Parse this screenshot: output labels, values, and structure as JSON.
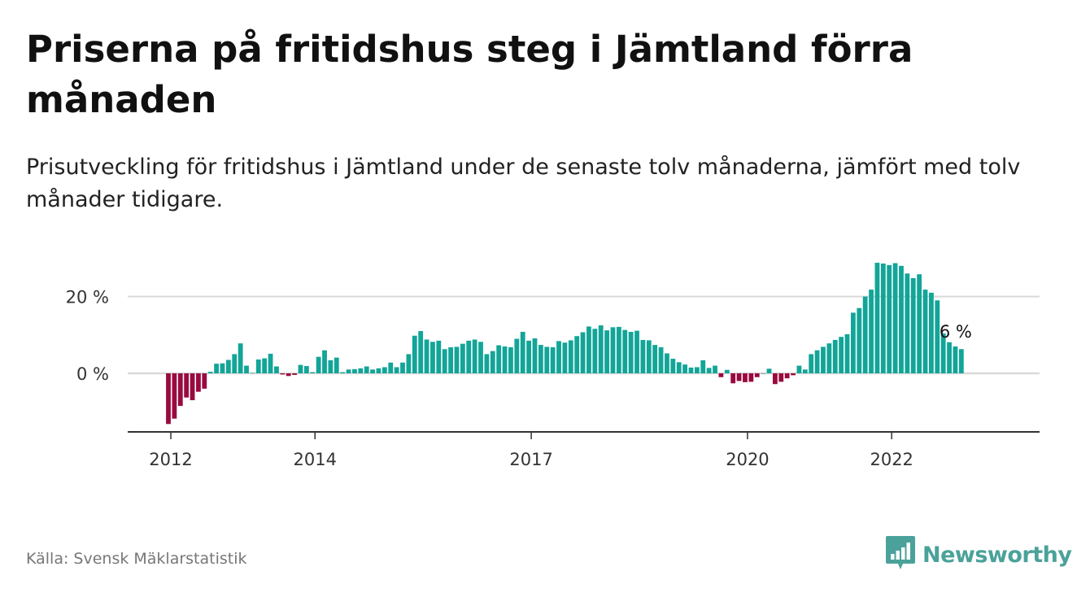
{
  "header": {
    "title": "Priserna på fritidshus steg i Jämtland förra månaden",
    "subtitle": "Prisutveckling för fritidshus i Jämtland under de senaste tolv månaderna, jämfört med tolv månader tidigare."
  },
  "footer": {
    "source": "Källa: Svensk Mäklarstatistik",
    "brand": "Newsworthy",
    "brand_icon": "bar-chart-speech-bubble-icon",
    "brand_color": "#4aa29a"
  },
  "colors": {
    "positive": "#12a598",
    "negative": "#990a3f",
    "grid": "#d9d9d9",
    "axis": "#333333"
  },
  "chart_data": {
    "type": "bar",
    "x_start": "2012-01",
    "frequency": "monthly",
    "ylim": [
      -15,
      29
    ],
    "yticks": [
      0,
      20
    ],
    "ytick_labels": [
      "0 %",
      "20 %"
    ],
    "xticks": [
      "2012-01",
      "2014-01",
      "2017-01",
      "2020-01",
      "2022-01"
    ],
    "xtick_labels": [
      "2012",
      "2014",
      "2017",
      "2020",
      "2022"
    ],
    "grid": true,
    "end_label": "6 %",
    "values": [
      -13.2,
      -11.8,
      -8.5,
      -6.3,
      -7.0,
      -4.8,
      -4.0,
      0.4,
      2.5,
      2.6,
      3.5,
      5.0,
      7.8,
      2.0,
      0.1,
      3.6,
      3.9,
      5.1,
      1.8,
      -0.3,
      -0.7,
      -0.4,
      2.2,
      1.9,
      0.3,
      4.3,
      6.0,
      3.4,
      4.1,
      0.3,
      1.0,
      1.1,
      1.3,
      1.8,
      1.0,
      1.3,
      1.6,
      2.8,
      1.6,
      2.8,
      5.0,
      9.8,
      11.0,
      8.8,
      8.2,
      8.5,
      6.3,
      6.8,
      6.9,
      7.7,
      8.5,
      8.8,
      8.2,
      5.0,
      5.8,
      7.3,
      7.0,
      6.8,
      9.0,
      10.8,
      8.5,
      9.1,
      7.4,
      6.9,
      6.8,
      8.4,
      8.0,
      8.6,
      9.7,
      10.7,
      12.2,
      11.6,
      12.5,
      11.2,
      12.0,
      12.1,
      11.3,
      10.8,
      11.1,
      8.7,
      8.6,
      7.4,
      6.8,
      5.2,
      3.8,
      2.9,
      2.3,
      1.5,
      1.6,
      3.4,
      1.4,
      2.0,
      -1.0,
      0.9,
      -2.6,
      -2.0,
      -2.3,
      -2.2,
      -1.0,
      0.0,
      1.2,
      -2.8,
      -2.2,
      -1.3,
      -0.5,
      2.0,
      1.0,
      5.0,
      6.0,
      6.9,
      7.8,
      8.7,
      9.5,
      10.2,
      15.8,
      17.0,
      20.0,
      21.8,
      28.8,
      28.6,
      28.2,
      28.7,
      28.0,
      26.0,
      24.8,
      25.8,
      21.8,
      21.0,
      19.0,
      10.4,
      8.1,
      7.0,
      6.3
    ]
  }
}
